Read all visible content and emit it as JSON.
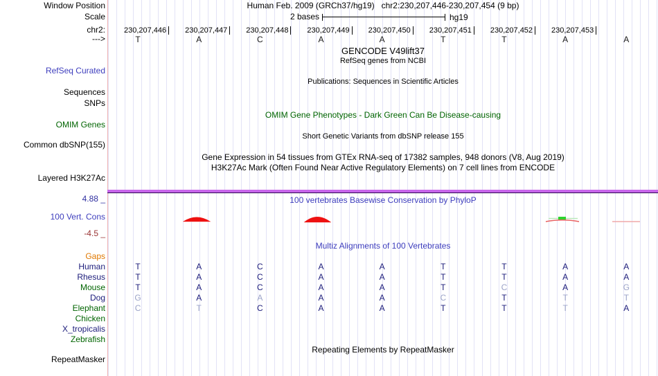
{
  "window": {
    "title": "Human Feb. 2009 (GRCh37/hg19)   chr2:230,207,446-230,207,454 (9 bp)"
  },
  "scale": {
    "label": "2 bases",
    "assembly": "hg19"
  },
  "left_labels": {
    "window_position": "Window Position",
    "scale": "Scale",
    "chromosome": "chr2:",
    "strand": "--->",
    "refseq_curated": "RefSeq Curated",
    "sequences": "Sequences",
    "snps": "SNPs",
    "omim_genes": "OMIM Genes",
    "common_dbsnp": "Common dbSNP(155)",
    "layered_h3k27ac": "Layered H3K27Ac",
    "cons_max": "4.88 _",
    "vert_cons": "100 Vert. Cons",
    "cons_min": "-4.5 _",
    "repeatmasker": "RepeatMasker"
  },
  "track_messages": {
    "gencode": "GENCODE V49lift37",
    "refseq": "RefSeq genes from NCBI",
    "publications": "Publications: Sequences in Scientific Articles",
    "omim": "OMIM Gene Phenotypes - Dark Green Can Be Disease-causing",
    "dbsnp": "Short Genetic Variants from dbSNP release 155",
    "gtex": "Gene Expression in 54 tissues from GTEx RNA-seq of 17382 samples, 948 donors (V8, Aug 2019)",
    "h3k27ac": "H3K27Ac Mark (Often Found Near Active Regulatory Elements) on 7 cell lines from ENCODE",
    "phylop": "100 vertebrates Basewise Conservation by PhyloP",
    "multiz": "Multiz Alignments of 100 Vertebrates",
    "repeatmasker": "Repeating Elements by RepeatMasker"
  },
  "ruler": {
    "positions": [
      "230,207,446",
      "230,207,447",
      "230,207,448",
      "230,207,449",
      "230,207,450",
      "230,207,451",
      "230,207,452",
      "230,207,453"
    ],
    "sequence": [
      "T",
      "A",
      "C",
      "A",
      "A",
      "T",
      "T",
      "A",
      "A"
    ]
  },
  "conservation": {
    "max": "4.88",
    "min": "-4.5"
  },
  "alignment": {
    "species": [
      {
        "name": "Gaps",
        "color": "orange",
        "bases": [],
        "dim": []
      },
      {
        "name": "Human",
        "color": "navy",
        "bases": [
          "T",
          "A",
          "C",
          "A",
          "A",
          "T",
          "T",
          "A",
          "A"
        ],
        "dim": [
          0,
          0,
          0,
          0,
          0,
          0,
          0,
          0,
          0
        ]
      },
      {
        "name": "Rhesus",
        "color": "navy",
        "bases": [
          "T",
          "A",
          "C",
          "A",
          "A",
          "T",
          "T",
          "A",
          "A"
        ],
        "dim": [
          0,
          0,
          0,
          0,
          0,
          0,
          0,
          0,
          0
        ]
      },
      {
        "name": "Mouse",
        "color": "green",
        "bases": [
          "T",
          "A",
          "C",
          "A",
          "A",
          "T",
          "C",
          "A",
          "G"
        ],
        "dim": [
          0,
          0,
          0,
          0,
          0,
          0,
          1,
          0,
          1
        ]
      },
      {
        "name": "Dog",
        "color": "navy",
        "bases": [
          "G",
          "A",
          "A",
          "A",
          "A",
          "C",
          "T",
          "T",
          "T"
        ],
        "dim": [
          1,
          0,
          1,
          0,
          0,
          1,
          0,
          1,
          1
        ]
      },
      {
        "name": "Elephant",
        "color": "green",
        "bases": [
          "C",
          "T",
          "C",
          "A",
          "A",
          "T",
          "T",
          "T",
          "A"
        ],
        "dim": [
          1,
          1,
          0,
          0,
          0,
          0,
          0,
          1,
          0
        ]
      },
      {
        "name": "Chicken",
        "color": "green",
        "bases": [],
        "dim": []
      },
      {
        "name": "X_tropicalis",
        "color": "navy",
        "bases": [],
        "dim": []
      },
      {
        "name": "Zebrafish",
        "color": "green",
        "bases": [],
        "dim": []
      }
    ]
  },
  "colors": {
    "grid_line": "#e2e2f6",
    "left_border": "#f0b2b2",
    "purple_bar": "#c765ea",
    "heading_blue": "#3d3dbd",
    "species_navy": "#1b1b7a",
    "species_green": "#006400",
    "gaps_orange": "#e07800",
    "dim_base": "#9ba3c8",
    "wiggle_red": "#ee1111",
    "wiggle_green": "#2fd32f"
  }
}
